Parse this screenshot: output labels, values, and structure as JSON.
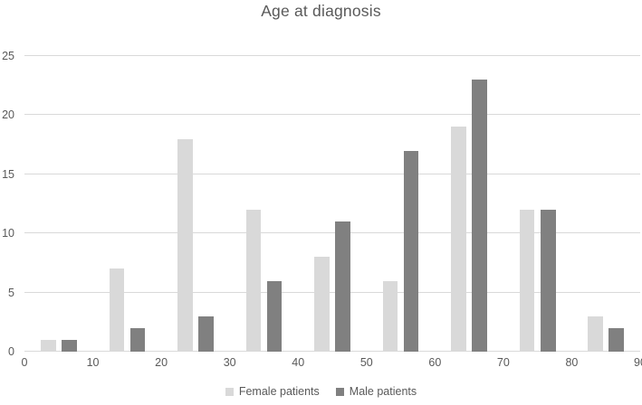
{
  "title": "Age at diagnosis",
  "chart_data": {
    "type": "bar",
    "title": "Age at diagnosis",
    "categories": [
      "0-10",
      "10-20",
      "20-30",
      "30-40",
      "40-50",
      "50-60",
      "60-70",
      "70-80",
      "80-90"
    ],
    "x_tick_labels": [
      "0",
      "10",
      "20",
      "30",
      "40",
      "50",
      "60",
      "70",
      "80",
      "90"
    ],
    "y_tick_labels": [
      "0",
      "5",
      "10",
      "15",
      "20",
      "25"
    ],
    "y_ticks": [
      0,
      5,
      10,
      15,
      20,
      25
    ],
    "ylim": [
      0,
      25
    ],
    "grid": true,
    "legend_position": "bottom",
    "series": [
      {
        "name": "Female patients",
        "color": "#d9d9d9",
        "values": [
          1,
          7,
          18,
          12,
          8,
          6,
          19,
          12,
          3
        ]
      },
      {
        "name": "Male patients",
        "color": "#808080",
        "values": [
          1,
          2,
          3,
          6,
          11,
          17,
          23,
          12,
          2
        ]
      }
    ]
  },
  "colors": {
    "gridline": "#d9d9d9",
    "text": "#595959",
    "background": "#ffffff",
    "female_series": "#d9d9d9",
    "male_series": "#808080"
  }
}
